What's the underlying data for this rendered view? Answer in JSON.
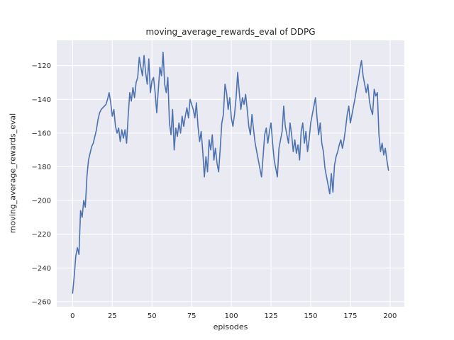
{
  "chart_data": {
    "type": "line",
    "title": "moving_average_rewards_eval of DDPG",
    "xlabel": "episodes",
    "ylabel": "moving_average_rewards_eval",
    "xlim": [
      -10,
      209
    ],
    "ylim": [
      -263,
      -105
    ],
    "x_ticks": [
      0,
      25,
      50,
      75,
      100,
      125,
      150,
      175,
      200
    ],
    "y_ticks": [
      -260,
      -240,
      -220,
      -200,
      -180,
      -160,
      -140,
      -120
    ],
    "grid": true,
    "legend": "none",
    "line_color": "#4c72b0",
    "plot_bg_color": "#eaeaf2",
    "grid_color": "#ffffff",
    "x_start": 0,
    "x_step": 1,
    "values": [
      -255,
      -245,
      -233,
      -228,
      -232,
      -206,
      -210,
      -200,
      -204,
      -186,
      -176,
      -172,
      -168,
      -166,
      -162,
      -158,
      -152,
      -148,
      -146,
      -145,
      -144,
      -143,
      -140,
      -136,
      -142,
      -150,
      -146,
      -156,
      -160,
      -157,
      -165,
      -158,
      -163,
      -158,
      -166,
      -150,
      -136,
      -141,
      -133,
      -139,
      -130,
      -127,
      -115,
      -121,
      -126,
      -114,
      -124,
      -131,
      -116,
      -136,
      -129,
      -127,
      -136,
      -148,
      -134,
      -121,
      -126,
      -112,
      -131,
      -136,
      -127,
      -154,
      -161,
      -146,
      -170,
      -157,
      -162,
      -154,
      -160,
      -150,
      -156,
      -150,
      -145,
      -151,
      -140,
      -143,
      -146,
      -151,
      -142,
      -156,
      -165,
      -159,
      -171,
      -186,
      -174,
      -183,
      -164,
      -170,
      -161,
      -176,
      -169,
      -178,
      -183,
      -169,
      -154,
      -149,
      -131,
      -136,
      -146,
      -139,
      -151,
      -156,
      -149,
      -139,
      -124,
      -136,
      -146,
      -139,
      -143,
      -137,
      -146,
      -156,
      -161,
      -149,
      -158,
      -166,
      -171,
      -176,
      -181,
      -186,
      -174,
      -161,
      -157,
      -166,
      -159,
      -154,
      -166,
      -176,
      -181,
      -186,
      -169,
      -164,
      -159,
      -144,
      -156,
      -161,
      -166,
      -154,
      -161,
      -171,
      -164,
      -172,
      -167,
      -176,
      -159,
      -154,
      -166,
      -159,
      -171,
      -164,
      -154,
      -149,
      -144,
      -139,
      -151,
      -161,
      -154,
      -166,
      -171,
      -181,
      -186,
      -191,
      -196,
      -184,
      -195,
      -179,
      -174,
      -171,
      -167,
      -164,
      -169,
      -164,
      -157,
      -149,
      -144,
      -154,
      -149,
      -144,
      -139,
      -133,
      -128,
      -122,
      -117,
      -126,
      -131,
      -136,
      -131,
      -141,
      -146,
      -149,
      -134,
      -138,
      -136,
      -161,
      -171,
      -166,
      -173,
      -169,
      -176,
      -182
    ]
  }
}
